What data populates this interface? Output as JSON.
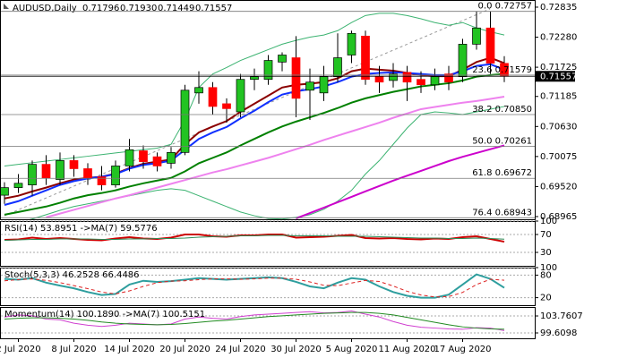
{
  "chart_data": [
    {
      "type": "candlestick",
      "symbol": "AUDUSD,Daily",
      "last": {
        "values": [
          0.71796,
          0.7193,
          0.71449,
          0.71557
        ],
        "value_labels": [
          "0.71796",
          "0.71930",
          "0.71449",
          "0.71557"
        ]
      },
      "current_price": {
        "value": 0.71557,
        "label": "0.71557"
      },
      "categories": [
        null,
        "2 Jul 2020",
        null,
        null,
        null,
        "8 Jul 2020",
        null,
        null,
        null,
        "14 Jul 2020",
        null,
        null,
        null,
        "20 Jul 2020",
        null,
        null,
        null,
        "24 Jul 2020",
        null,
        null,
        null,
        "30 Jul 2020",
        null,
        null,
        null,
        "5 Aug 2020",
        null,
        null,
        null,
        "11 Aug 2020",
        null,
        null,
        null,
        "17 Aug 2020",
        null,
        null,
        null
      ],
      "open": [
        0.6936,
        0.695,
        0.6955,
        0.6993,
        0.6965,
        0.7,
        0.6985,
        0.697,
        0.6955,
        0.699,
        0.7018,
        0.7007,
        0.6995,
        0.7015,
        0.7125,
        0.7135,
        0.7105,
        0.709,
        0.715,
        0.715,
        0.7182,
        0.719,
        0.713,
        0.7125,
        0.7155,
        0.7195,
        0.723,
        0.7155,
        0.7148,
        0.7163,
        0.715,
        0.714,
        0.716,
        0.7155,
        0.7215,
        0.7245,
        0.71796
      ],
      "high": [
        0.696,
        0.6975,
        0.7,
        0.701,
        0.7015,
        0.701,
        0.6995,
        0.699,
        0.7,
        0.704,
        0.7028,
        0.7015,
        0.7025,
        0.714,
        0.7165,
        0.7145,
        0.7115,
        0.716,
        0.717,
        0.7195,
        0.72,
        0.723,
        0.717,
        0.7175,
        0.7235,
        0.724,
        0.724,
        0.7175,
        0.718,
        0.7175,
        0.7165,
        0.717,
        0.7175,
        0.7225,
        0.7276,
        0.7276,
        0.7193
      ],
      "low": [
        0.692,
        0.694,
        0.6935,
        0.6955,
        0.6955,
        0.697,
        0.6955,
        0.6945,
        0.695,
        0.698,
        0.6985,
        0.698,
        0.6985,
        0.701,
        0.7105,
        0.7085,
        0.707,
        0.708,
        0.713,
        0.714,
        0.7165,
        0.708,
        0.7075,
        0.711,
        0.7145,
        0.718,
        0.714,
        0.7125,
        0.7135,
        0.711,
        0.7125,
        0.713,
        0.713,
        0.7145,
        0.7205,
        0.716,
        0.71449
      ],
      "close": [
        0.695,
        0.6958,
        0.6993,
        0.6968,
        0.7,
        0.6985,
        0.6968,
        0.6955,
        0.699,
        0.702,
        0.6998,
        0.699,
        0.7015,
        0.713,
        0.7135,
        0.71,
        0.7096,
        0.715,
        0.7155,
        0.7185,
        0.7195,
        0.7115,
        0.7145,
        0.7155,
        0.719,
        0.7235,
        0.715,
        0.7145,
        0.716,
        0.7145,
        0.714,
        0.7155,
        0.7145,
        0.7215,
        0.7245,
        0.718,
        0.71557
      ],
      "up_color": "#22c322",
      "down_color": "#ff0000",
      "series": [
        {
          "color": "#3cb371",
          "width": 1,
          "values": [
            0.699,
            0.6993,
            0.6996,
            0.6999,
            0.7002,
            0.7005,
            0.7008,
            0.7011,
            0.7014,
            0.7017,
            0.702,
            0.7023,
            0.703,
            0.7075,
            0.7135,
            0.716,
            0.7172,
            0.7185,
            0.7195,
            0.7205,
            0.7215,
            0.7222,
            0.7228,
            0.7232,
            0.724,
            0.7255,
            0.7268,
            0.7272,
            0.7272,
            0.7268,
            0.7262,
            0.7255,
            0.725,
            0.7255,
            0.7245,
            0.7238,
            0.7232
          ]
        },
        {
          "color": "#3cb371",
          "width": 1,
          "values": [
            0.688,
            0.6885,
            0.6892,
            0.69,
            0.6908,
            0.6915,
            0.692,
            0.6925,
            0.693,
            0.6935,
            0.694,
            0.6945,
            0.6948,
            0.6945,
            0.6935,
            0.6925,
            0.6915,
            0.6905,
            0.6898,
            0.6893,
            0.6892,
            0.6895,
            0.69,
            0.691,
            0.6925,
            0.6945,
            0.6975,
            0.7,
            0.703,
            0.706,
            0.7085,
            0.709,
            0.7088,
            0.7085,
            0.709,
            0.7095,
            0.71
          ]
        },
        {
          "color": "#cc00cc",
          "width": 2,
          "values": [
            null,
            null,
            null,
            null,
            null,
            null,
            null,
            null,
            null,
            null,
            null,
            null,
            null,
            null,
            null,
            null,
            null,
            null,
            null,
            null,
            null,
            0.6893,
            0.6903,
            0.6913,
            0.6923,
            0.6933,
            0.6943,
            0.6953,
            0.6963,
            0.6972,
            0.6981,
            0.699,
            0.6999,
            0.7007,
            0.7014,
            0.7021,
            0.7028
          ]
        },
        {
          "color": "#ee82ee",
          "width": 2,
          "values": [
            null,
            null,
            null,
            0.6895,
            0.6902,
            0.6909,
            0.6916,
            0.6923,
            0.693,
            0.6936,
            0.6943,
            0.695,
            0.6957,
            0.6964,
            0.6971,
            0.6978,
            0.6984,
            0.6991,
            0.6998,
            0.7005,
            0.7013,
            0.7021,
            0.7029,
            0.7038,
            0.7046,
            0.7054,
            0.7062,
            0.707,
            0.7079,
            0.7087,
            0.7095,
            0.7099,
            0.7103,
            0.7107,
            0.711,
            0.7114,
            0.7118
          ]
        },
        {
          "color": "#008000",
          "width": 2,
          "values": [
            0.69,
            0.6905,
            0.691,
            0.6915,
            0.6922,
            0.693,
            0.6936,
            0.694,
            0.6945,
            0.6952,
            0.6958,
            0.6963,
            0.6968,
            0.698,
            0.6995,
            0.7005,
            0.7015,
            0.7028,
            0.704,
            0.7052,
            0.7063,
            0.7072,
            0.708,
            0.7088,
            0.7097,
            0.7107,
            0.7115,
            0.7121,
            0.7127,
            0.7132,
            0.7137,
            0.714,
            0.7143,
            0.7148,
            0.7155,
            0.7158,
            0.716
          ]
        },
        {
          "color": "#8b0000",
          "width": 2,
          "values": [
            0.693,
            0.6935,
            0.6943,
            0.695,
            0.6958,
            0.6965,
            0.6968,
            0.697,
            0.6976,
            0.6986,
            0.6994,
            0.6998,
            0.7002,
            0.703,
            0.7052,
            0.7063,
            0.7073,
            0.709,
            0.7105,
            0.712,
            0.7135,
            0.714,
            0.7142,
            0.7145,
            0.7152,
            0.7165,
            0.717,
            0.7168,
            0.7166,
            0.7162,
            0.7158,
            0.7156,
            0.7156,
            0.7168,
            0.7182,
            0.719,
            0.718
          ]
        },
        {
          "color": "#1030ff",
          "width": 2,
          "values": [
            0.6918,
            0.6925,
            0.6935,
            0.6945,
            0.6955,
            0.6962,
            0.6967,
            0.697,
            0.6975,
            0.6985,
            0.6992,
            0.6995,
            0.7,
            0.702,
            0.704,
            0.7052,
            0.7062,
            0.7078,
            0.7092,
            0.7108,
            0.7122,
            0.7128,
            0.7132,
            0.7137,
            0.7145,
            0.7155,
            0.716,
            0.7162,
            0.7163,
            0.7162,
            0.716,
            0.7158,
            0.7158,
            0.7165,
            0.7175,
            0.7178,
            0.7168
          ]
        }
      ],
      "fibonacci": [
        {
          "ratio": "0.0",
          "price": 0.72757
        },
        {
          "ratio": "23.6",
          "price": 0.71579
        },
        {
          "ratio": "38.2",
          "price": {
            "value": 0.7085,
            "label": "0.70850"
          }
        },
        {
          "ratio": "50.0",
          "price": 0.70261
        },
        {
          "ratio": "61.8",
          "price": 0.69672
        },
        {
          "ratio": "76.4",
          "price": 0.68943
        }
      ],
      "ylim": [
        0.68915,
        0.72967
      ],
      "yticks": [
        0.72835,
        {
          "value": 0.7228,
          "label": "0.72280"
        },
        0.71725,
        0.71185,
        {
          "value": 0.7063,
          "label": "0.70630"
        },
        0.70075,
        {
          "value": 0.6952,
          "label": "0.69520"
        },
        0.68965
      ]
    },
    {
      "type": "line",
      "title": "RSI(14) 53.8951 ->MA(7) 59.5776",
      "ylim": [
        0,
        100
      ],
      "yticks": [
        100,
        70,
        30
      ],
      "series": [
        {
          "color": "#cc0000",
          "width": 2,
          "values": [
            58,
            59,
            63,
            60,
            62,
            60,
            58,
            57,
            61,
            64,
            61,
            60,
            63,
            70,
            70,
            66,
            65,
            68,
            68,
            70,
            70,
            63,
            64,
            65,
            67,
            69,
            62,
            61,
            62,
            60,
            59,
            61,
            60,
            64,
            66,
            60,
            53.8951
          ]
        },
        {
          "color": "#2e8b57",
          "width": 1,
          "values": [
            57,
            58,
            59,
            59,
            60,
            60,
            60,
            59,
            59,
            60,
            60,
            61,
            61,
            62,
            64,
            65,
            66,
            67,
            67,
            68,
            68,
            67,
            67,
            67,
            66,
            66,
            66,
            65,
            64,
            63,
            62,
            62,
            61,
            61,
            62,
            61,
            59.5776
          ]
        }
      ]
    },
    {
      "type": "line",
      "title": "Stoch(5,3,3) 46.2528 66.4486",
      "ylim": [
        0,
        100
      ],
      "yticks": [
        100,
        80,
        20
      ],
      "series": [
        {
          "color": "#2e9e9e",
          "width": 2,
          "values": [
            70,
            68,
            72,
            60,
            52,
            45,
            35,
            27,
            30,
            55,
            65,
            62,
            64,
            68,
            72,
            70,
            68,
            70,
            72,
            74,
            72,
            62,
            50,
            45,
            60,
            72,
            68,
            50,
            35,
            25,
            20,
            20,
            28,
            55,
            82,
            70,
            46.2528
          ]
        },
        {
          "color": "#dd2222",
          "width": 1,
          "dash": true,
          "values": [
            65,
            68,
            70,
            66,
            60,
            52,
            44,
            35,
            30,
            38,
            50,
            60,
            64,
            65,
            68,
            70,
            70,
            69,
            70,
            72,
            72,
            69,
            62,
            53,
            52,
            59,
            66,
            63,
            51,
            37,
            27,
            22,
            23,
            34,
            55,
            69,
            66.4486
          ]
        }
      ]
    },
    {
      "type": "line",
      "title": "Momentum(14) 100.1890 ->MA(7) 100.5151",
      "ylim": [
        98.3,
        105.95
      ],
      "yticks": [
        103.7607,
        99.6098
      ],
      "series": [
        {
          "color": "#d040d0",
          "width": 1,
          "values": [
            103.5,
            104,
            103.8,
            103,
            102.8,
            102,
            101.5,
            101.2,
            101.5,
            102,
            101.8,
            101.6,
            101.8,
            103,
            103.5,
            103.2,
            103,
            103.6,
            104,
            104.2,
            104.4,
            104.6,
            104.8,
            104.5,
            104.6,
            105,
            104.2,
            103.5,
            102.4,
            101.5,
            101,
            100.8,
            100.6,
            100.5,
            100.9,
            100.8,
            100.189
          ]
        },
        {
          "color": "#228b22",
          "width": 1,
          "values": [
            103,
            103.2,
            103.3,
            103.3,
            103.2,
            103,
            102.7,
            102.3,
            102,
            101.8,
            101.7,
            101.6,
            101.7,
            101.9,
            102.2,
            102.5,
            102.7,
            103,
            103.3,
            103.6,
            103.8,
            104,
            104.2,
            104.4,
            104.5,
            104.6,
            104.6,
            104.4,
            104,
            103.4,
            102.8,
            102.2,
            101.6,
            101.1,
            100.8,
            100.6,
            100.5151
          ]
        }
      ]
    }
  ]
}
